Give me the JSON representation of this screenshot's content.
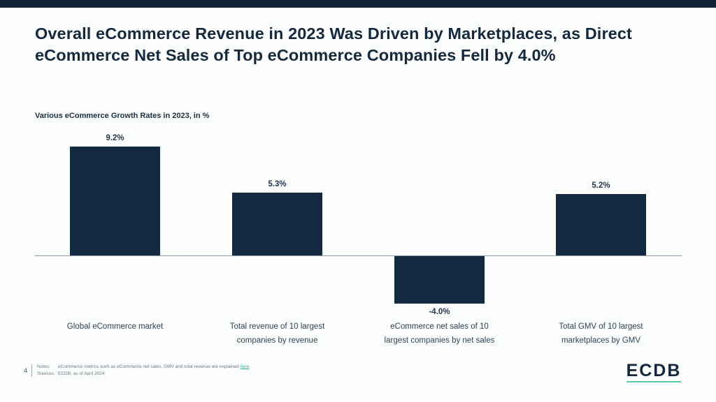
{
  "slide": {
    "title": "Overall eCommerce Revenue in 2023 Was Driven by Marketplaces, as Direct eCommerce Net Sales of Top eCommerce Companies Fell by 4.0%",
    "page_number": "4"
  },
  "chart_data": {
    "type": "bar",
    "title": "Various eCommerce Growth Rates in 2023, in %",
    "categories": [
      "Global eCommerce market",
      "Total revenue of 10 largest\ncompanies by revenue",
      "eCommerce net sales of 10\nlargest companies by net sales",
      "Total GMV of 10 largest\nmarketplaces by GMV"
    ],
    "values": [
      9.2,
      5.3,
      -4.0,
      5.2
    ],
    "value_labels": [
      "9.2%",
      "5.3%",
      "-4.0%",
      "5.2%"
    ],
    "bar_color": "#152a40",
    "ylim": [
      -5,
      10
    ],
    "grid": false,
    "legend": "none",
    "xlabel": "",
    "ylabel": ""
  },
  "footer": {
    "notes_label": "Notes:",
    "notes_text": "eCommerce metrics such as eCommerce net sales, GMV and total revenue are explained",
    "notes_link": "here",
    "notes_suffix": ".",
    "sources_label": "Sources:",
    "sources_text": "ECDB, as of April 2024",
    "logo_text": "ECDB"
  },
  "colors": {
    "top_bar": "#0f2233",
    "title_text": "#15293e",
    "axis_line": "#8a99a8",
    "logo_underline": "#57c9a2",
    "link": "#2bb3a3"
  }
}
